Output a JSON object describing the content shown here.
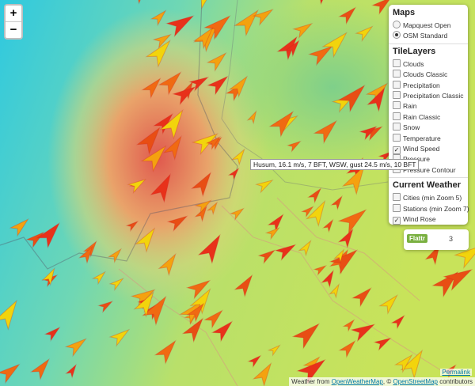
{
  "zoom": {
    "in": "+",
    "out": "−"
  },
  "layers": {
    "maps": {
      "title": "Maps",
      "options": [
        {
          "label": "Mapquest Open",
          "selected": false
        },
        {
          "label": "OSM Standard",
          "selected": true
        }
      ]
    },
    "tile_layers": {
      "title": "TileLayers",
      "options": [
        {
          "label": "Clouds",
          "checked": false
        },
        {
          "label": "Clouds Classic",
          "checked": false
        },
        {
          "label": "Precipitation",
          "checked": false
        },
        {
          "label": "Precipitation Classic",
          "checked": false
        },
        {
          "label": "Rain",
          "checked": false
        },
        {
          "label": "Rain Classic",
          "checked": false
        },
        {
          "label": "Snow",
          "checked": false
        },
        {
          "label": "Temperature",
          "checked": false
        },
        {
          "label": "Wind Speed",
          "checked": true
        },
        {
          "label": "Pressure",
          "checked": false
        },
        {
          "label": "Pressure Contour",
          "checked": false
        }
      ]
    },
    "current_weather": {
      "title": "Current Weather",
      "options": [
        {
          "label": "Cities (min Zoom 5)",
          "checked": false
        },
        {
          "label": "Stations (min Zoom 7)",
          "checked": false
        },
        {
          "label": "Wind Rose",
          "checked": true
        }
      ]
    }
  },
  "tooltip": "Husum, 16.1 m/s, 7 BFT, WSW, gust 24.5 m/s, 10 BFT",
  "flattr": {
    "label": "Flattr",
    "count": 3
  },
  "permalink": "Permalink",
  "attribution": {
    "prefix": "Weather from",
    "owm": "OpenWeatherMap",
    "sep": ",",
    "copy": "©",
    "osm": "OpenStreetMap",
    "suffix": "contributors"
  }
}
